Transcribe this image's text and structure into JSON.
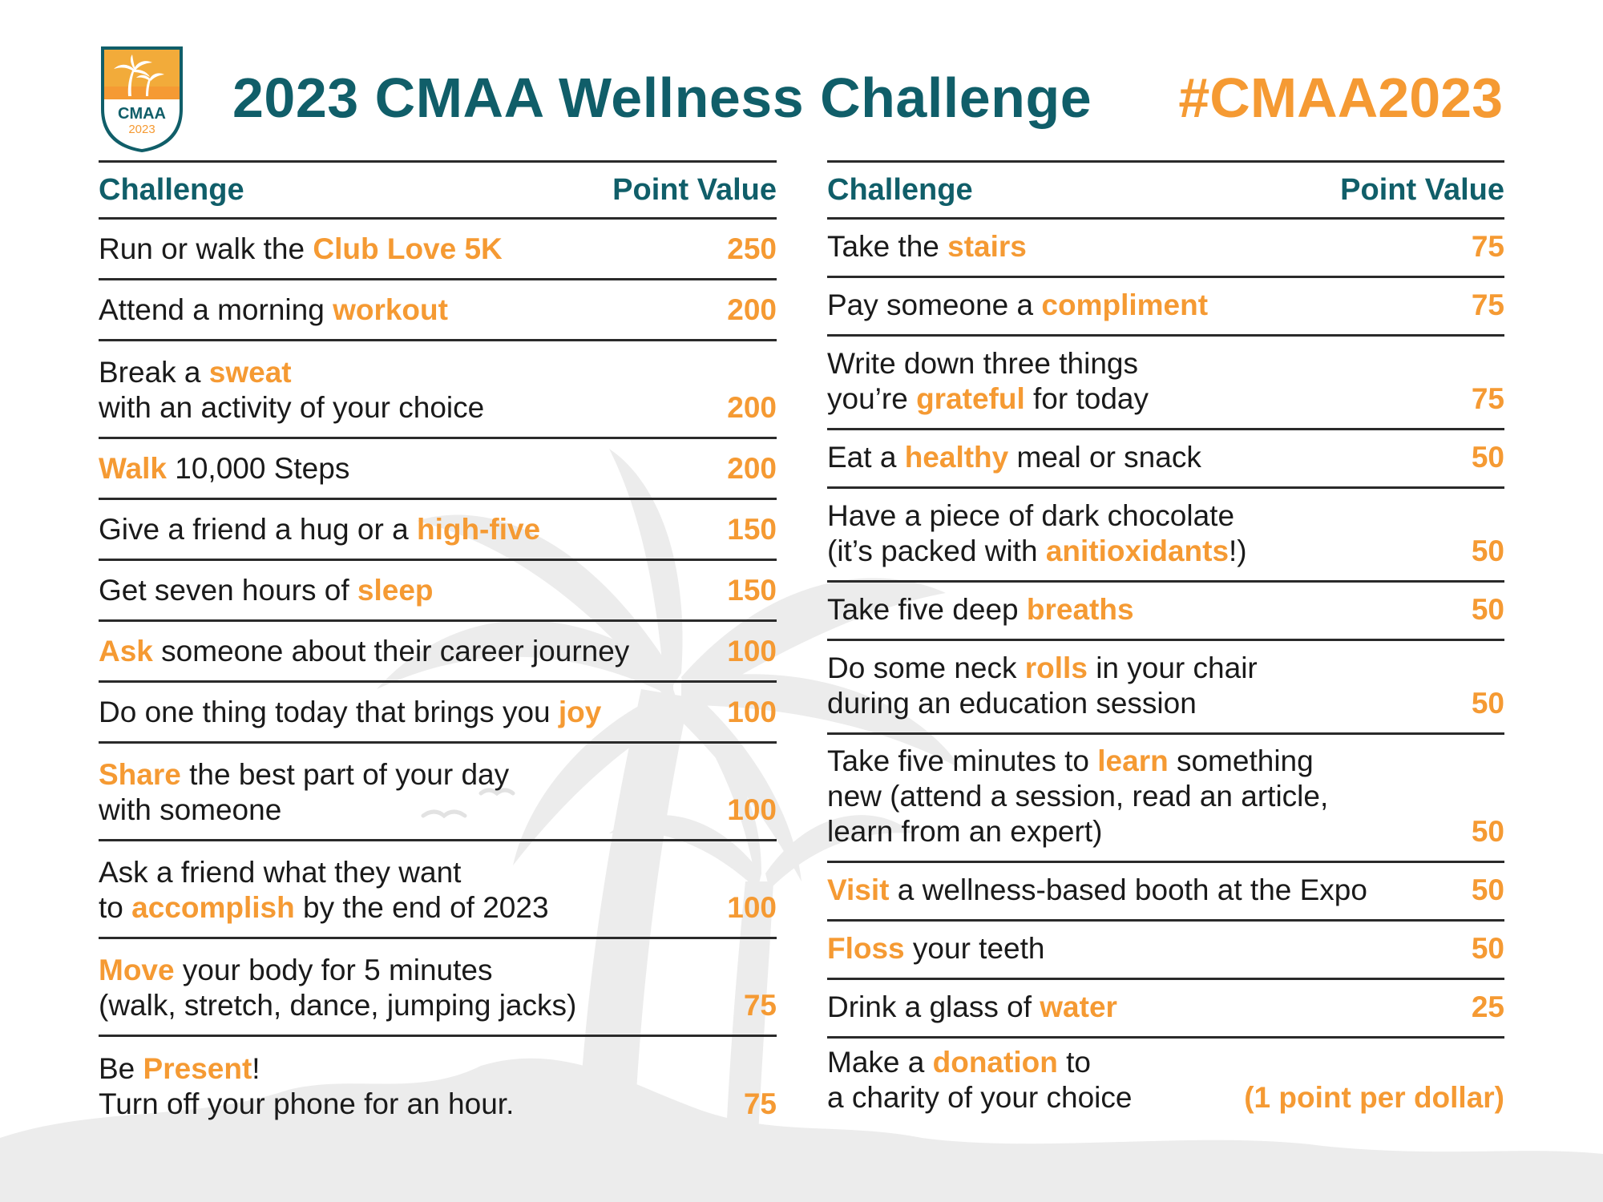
{
  "header": {
    "title": "2023 CMAA Wellness Challenge",
    "hashtag": "#CMAA2023",
    "logo": {
      "name": "CMAA",
      "year": "2023"
    }
  },
  "columns": {
    "challenge_label": "Challenge",
    "points_label": "Point Value"
  },
  "left": [
    {
      "lines": [
        [
          {
            "t": "Run or walk the "
          },
          {
            "t": "Club Love 5K",
            "hl": true
          }
        ]
      ],
      "points": "250"
    },
    {
      "lines": [
        [
          {
            "t": "Attend a morning "
          },
          {
            "t": "workout",
            "hl": true
          }
        ]
      ],
      "points": "200"
    },
    {
      "lines": [
        [
          {
            "t": "Break a "
          },
          {
            "t": "sweat",
            "hl": true
          }
        ],
        [
          {
            "t": "with an activity of your choice"
          }
        ]
      ],
      "points": "200"
    },
    {
      "lines": [
        [
          {
            "t": "Walk",
            "hl": true
          },
          {
            "t": " 10,000 Steps"
          }
        ]
      ],
      "points": "200"
    },
    {
      "lines": [
        [
          {
            "t": "Give a friend a hug or a "
          },
          {
            "t": "high-five",
            "hl": true
          }
        ]
      ],
      "points": "150"
    },
    {
      "lines": [
        [
          {
            "t": "Get seven hours of "
          },
          {
            "t": "sleep",
            "hl": true
          }
        ]
      ],
      "points": "150"
    },
    {
      "lines": [
        [
          {
            "t": "Ask",
            "hl": true
          },
          {
            "t": " someone about their career journey"
          }
        ]
      ],
      "points": "100"
    },
    {
      "lines": [
        [
          {
            "t": "Do one thing today that brings you "
          },
          {
            "t": "joy",
            "hl": true
          }
        ]
      ],
      "points": "100"
    },
    {
      "lines": [
        [
          {
            "t": "Share",
            "hl": true
          },
          {
            "t": " the best part of your day"
          }
        ],
        [
          {
            "t": "with someone"
          }
        ]
      ],
      "points": "100"
    },
    {
      "lines": [
        [
          {
            "t": "Ask a friend what they want"
          }
        ],
        [
          {
            "t": "to "
          },
          {
            "t": "accomplish",
            "hl": true
          },
          {
            "t": " by the end of 2023"
          }
        ]
      ],
      "points": "100"
    },
    {
      "lines": [
        [
          {
            "t": "Move",
            "hl": true
          },
          {
            "t": " your body for 5 minutes"
          }
        ],
        [
          {
            "t": "(walk, stretch, dance, jumping jacks)"
          }
        ]
      ],
      "points": "75"
    },
    {
      "lines": [
        [
          {
            "t": "Be "
          },
          {
            "t": "Present",
            "hl": true
          },
          {
            "t": "!"
          }
        ],
        [
          {
            "t": "Turn off your phone for an hour."
          }
        ]
      ],
      "points": "75"
    }
  ],
  "right": [
    {
      "lines": [
        [
          {
            "t": "Take the "
          },
          {
            "t": "stairs",
            "hl": true
          }
        ]
      ],
      "points": "75"
    },
    {
      "lines": [
        [
          {
            "t": "Pay someone a "
          },
          {
            "t": "compliment",
            "hl": true
          }
        ]
      ],
      "points": "75"
    },
    {
      "lines": [
        [
          {
            "t": "Write down three things"
          }
        ],
        [
          {
            "t": "you’re "
          },
          {
            "t": "grateful",
            "hl": true
          },
          {
            "t": " for today"
          }
        ]
      ],
      "points": "75"
    },
    {
      "lines": [
        [
          {
            "t": "Eat a "
          },
          {
            "t": "healthy",
            "hl": true
          },
          {
            "t": " meal or snack"
          }
        ]
      ],
      "points": "50"
    },
    {
      "lines": [
        [
          {
            "t": "Have a piece of dark chocolate"
          }
        ],
        [
          {
            "t": "(it’s packed with "
          },
          {
            "t": "anitioxidants",
            "hl": true
          },
          {
            "t": "!)"
          }
        ]
      ],
      "points": "50"
    },
    {
      "lines": [
        [
          {
            "t": "Take five deep "
          },
          {
            "t": "breaths",
            "hl": true
          }
        ]
      ],
      "points": "50"
    },
    {
      "lines": [
        [
          {
            "t": "Do some neck "
          },
          {
            "t": "rolls",
            "hl": true
          },
          {
            "t": " in your chair"
          }
        ],
        [
          {
            "t": "during an education session"
          }
        ]
      ],
      "points": "50"
    },
    {
      "lines": [
        [
          {
            "t": "Take five minutes to "
          },
          {
            "t": "learn",
            "hl": true
          },
          {
            "t": " something"
          }
        ],
        [
          {
            "t": "new (attend a session, read an article,"
          }
        ],
        [
          {
            "t": "learn from an expert)"
          }
        ]
      ],
      "points": "50"
    },
    {
      "lines": [
        [
          {
            "t": "Visit",
            "hl": true
          },
          {
            "t": " a wellness-based booth at the Expo"
          }
        ]
      ],
      "points": "50"
    },
    {
      "lines": [
        [
          {
            "t": "Floss",
            "hl": true
          },
          {
            "t": " your teeth"
          }
        ]
      ],
      "points": "50"
    },
    {
      "lines": [
        [
          {
            "t": "Drink a glass of "
          },
          {
            "t": "water",
            "hl": true
          }
        ]
      ],
      "points": "25"
    },
    {
      "lines": [
        [
          {
            "t": "Make a "
          },
          {
            "t": "donation",
            "hl": true
          },
          {
            "t": " to"
          }
        ],
        [
          {
            "t": "a charity of your choice"
          }
        ]
      ],
      "points": "(1 point per dollar)"
    }
  ],
  "colors": {
    "teal": "#105e69",
    "orange": "#f59a33",
    "palm_gray": "#eaeaea"
  },
  "icons": [
    "palm-tree-icon",
    "bird-icon"
  ]
}
